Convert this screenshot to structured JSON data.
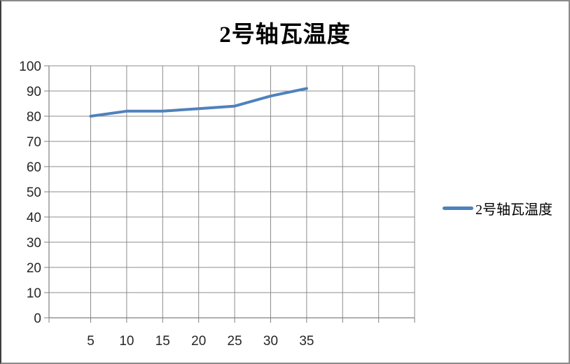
{
  "chart_data": {
    "type": "line",
    "title": "2号轴瓦温度",
    "xlabel": "",
    "ylabel": "",
    "x_tick_labels": [
      "5",
      "10",
      "15",
      "20",
      "25",
      "30",
      "35"
    ],
    "y_tick_labels": [
      "0",
      "10",
      "20",
      "30",
      "40",
      "50",
      "60",
      "70",
      "80",
      "90",
      "100"
    ],
    "ylim": [
      0,
      100
    ],
    "y_gridline_step": 10,
    "extra_unlabeled_x_gridlines": 3,
    "grid": true,
    "legend_position": "right",
    "series": [
      {
        "name": "2号轴瓦温度",
        "x": [
          5,
          10,
          15,
          20,
          25,
          30,
          35
        ],
        "values": [
          80,
          82,
          82,
          83,
          84,
          88,
          91
        ],
        "color": "#4F81BD"
      }
    ],
    "colors": {
      "line": "#4F81BD",
      "gridline": "#8C8C8C",
      "axis": "#808080",
      "tick_text": "#262626",
      "title_text": "#000000",
      "background": "#FFFFFF"
    }
  }
}
